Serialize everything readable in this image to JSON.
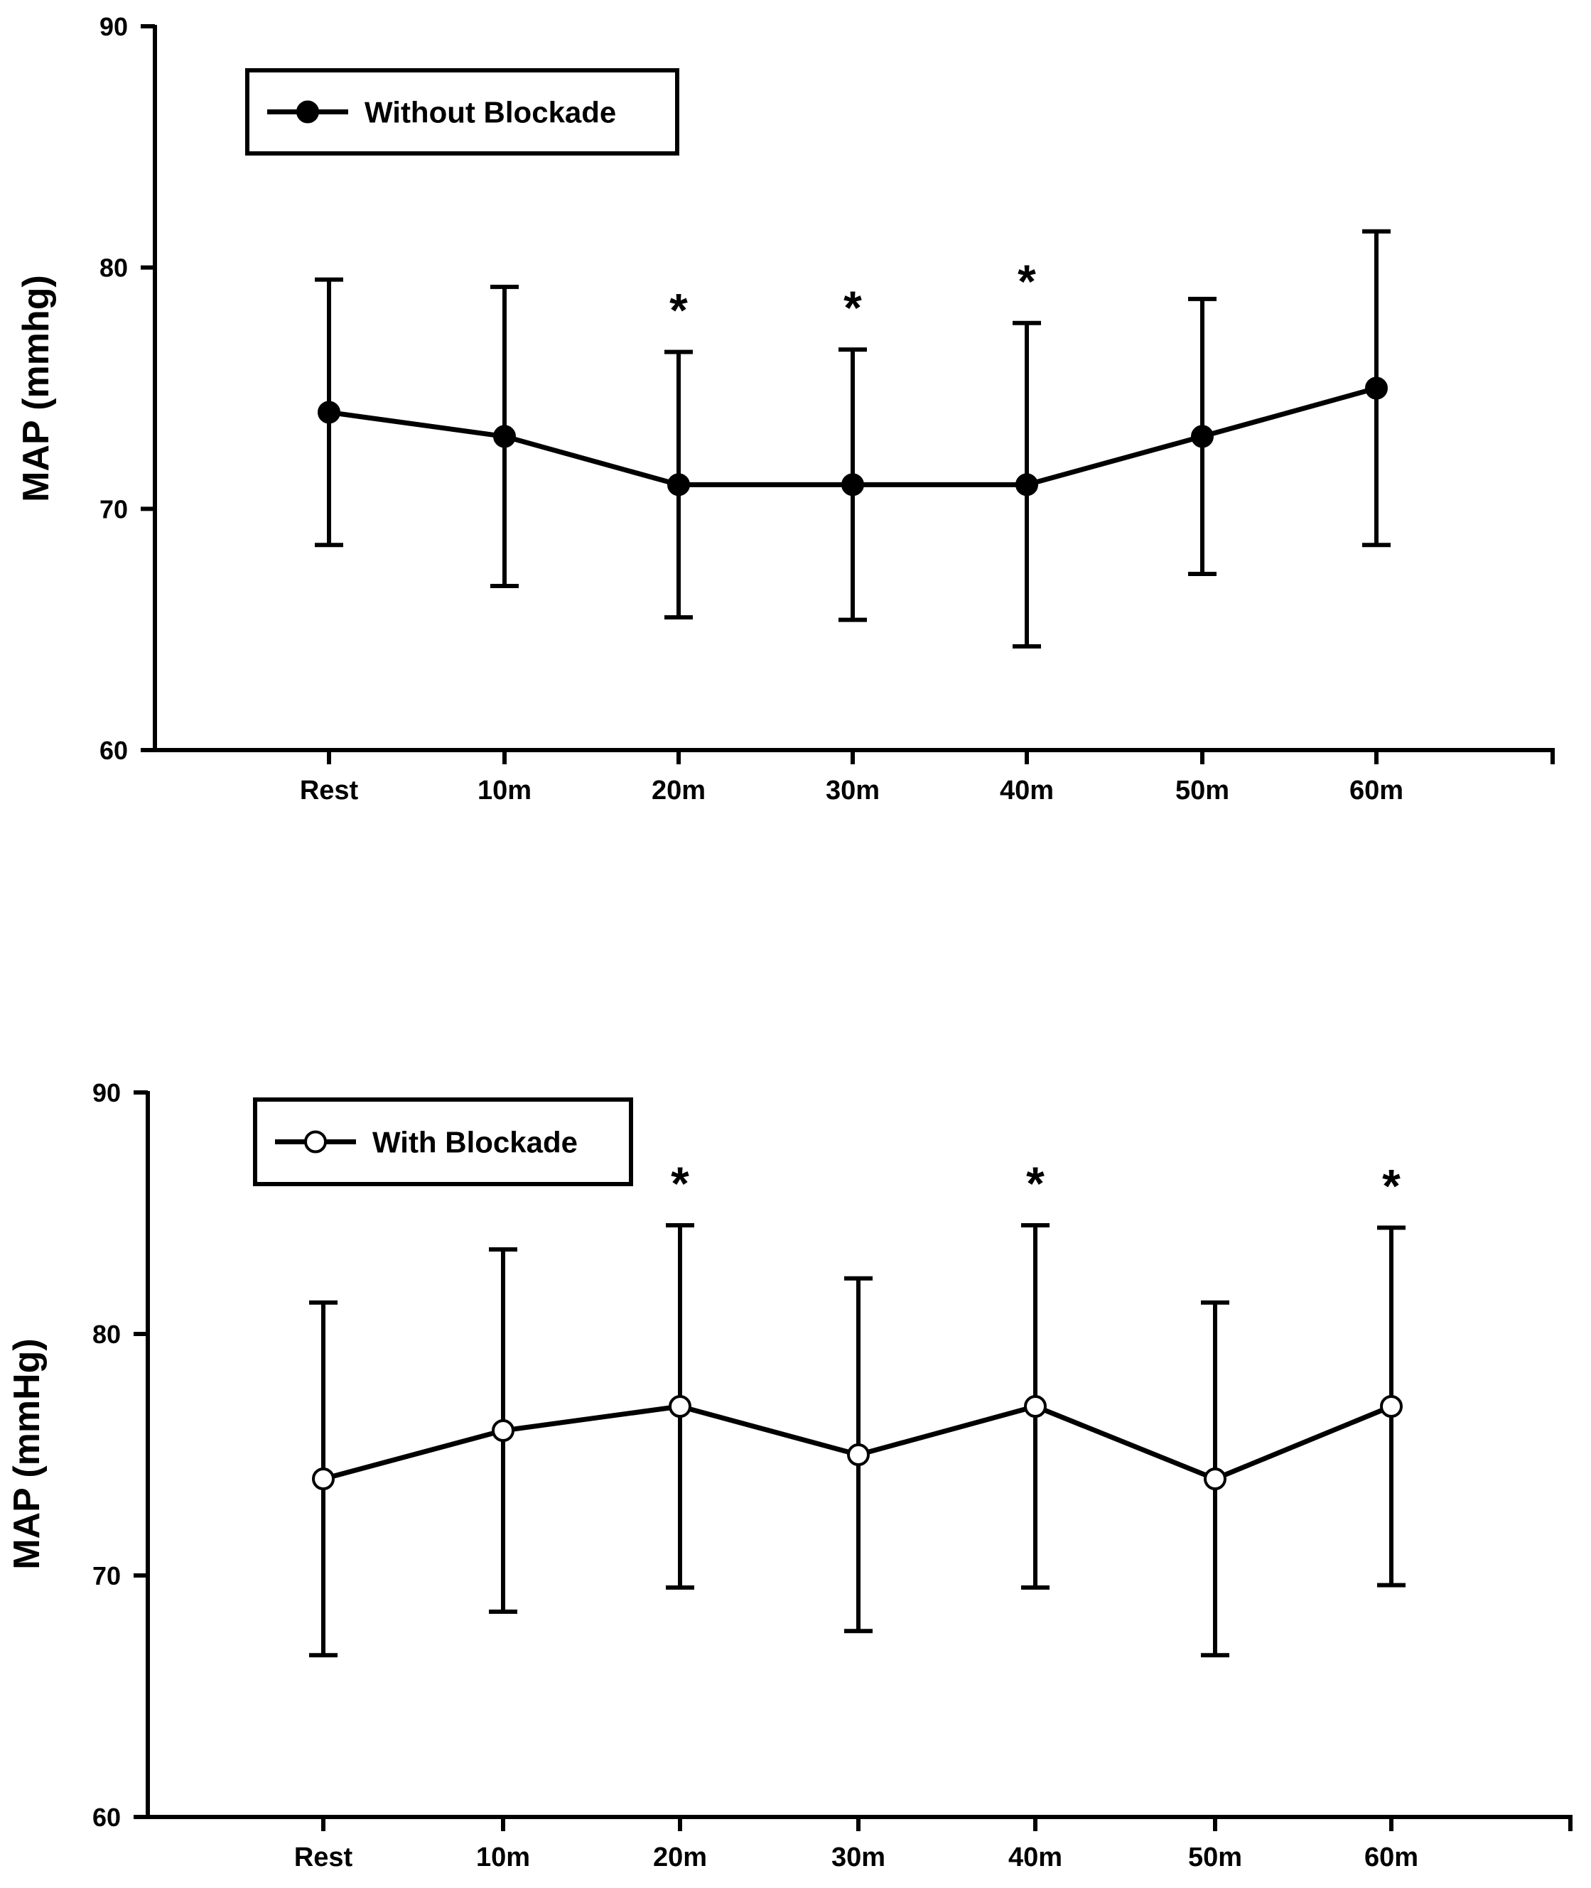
{
  "chart_data": [
    {
      "type": "line",
      "categories": [
        "Rest",
        "10m",
        "20m",
        "30m",
        "40m",
        "50m",
        "60m"
      ],
      "series": [
        {
          "name": "Without Blockade",
          "marker": "filled-circle",
          "values": [
            74,
            73,
            71,
            71,
            71,
            73,
            75
          ],
          "error_upper": [
            79.5,
            79.2,
            76.5,
            76.6,
            77.7,
            78.7,
            81.5
          ],
          "error_lower": [
            68.5,
            66.8,
            65.5,
            65.4,
            64.3,
            67.3,
            68.5
          ]
        }
      ],
      "significance": [
        "",
        "",
        "*",
        "*",
        "*",
        "",
        ""
      ],
      "ylabel": "MAP (mmhg)",
      "xlabel": "",
      "ylim": [
        60,
        90
      ],
      "yticks": [
        "60",
        "70",
        "80",
        "90"
      ],
      "grid": false,
      "legend": "top-left"
    },
    {
      "type": "line",
      "categories": [
        "Rest",
        "10m",
        "20m",
        "30m",
        "40m",
        "50m",
        "60m"
      ],
      "series": [
        {
          "name": "With Blockade",
          "marker": "open-circle",
          "values": [
            74,
            76,
            77,
            75,
            77,
            74,
            77
          ],
          "error_upper": [
            81.3,
            83.5,
            84.5,
            82.3,
            84.5,
            81.3,
            84.4
          ],
          "error_lower": [
            66.7,
            68.5,
            69.5,
            67.7,
            69.5,
            66.7,
            69.6
          ]
        }
      ],
      "significance": [
        "",
        "",
        "*",
        "",
        "*",
        "",
        "*"
      ],
      "ylabel": "MAP (mmHg)",
      "xlabel": "",
      "ylim": [
        60,
        90
      ],
      "yticks": [
        "60",
        "70",
        "80",
        "90"
      ],
      "grid": false,
      "legend": "top-left"
    }
  ]
}
